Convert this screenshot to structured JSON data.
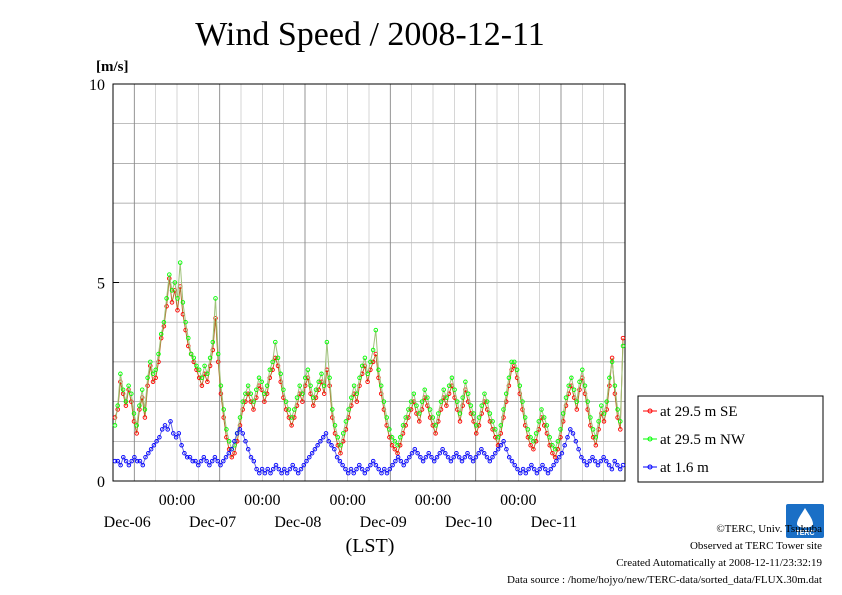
{
  "chart_data": {
    "type": "line",
    "title": "Wind Speed / 2008-12-11",
    "ylabel_unit": "[m/s]",
    "xlabel": "(LST)",
    "ylim": [
      0,
      10
    ],
    "y_ticks": [
      "0",
      "5",
      "10"
    ],
    "x_time_ticks": [
      "00:00",
      "00:00",
      "00:00",
      "00:00",
      "00:00"
    ],
    "x_date_labels": [
      "Dec-06",
      "Dec-07",
      "Dec-08",
      "Dec-09",
      "Dec-10",
      "Dec-11"
    ],
    "x_start_day": "Dec-05 ~18:00",
    "x_hours_span": 144,
    "grid": true,
    "legend_position": "right",
    "series": [
      {
        "name": "at 29.5 m SE",
        "color": "#ff0000",
        "values": [
          1.6,
          1.8,
          2.5,
          2.2,
          1.9,
          2.3,
          2.0,
          1.5,
          1.2,
          1.8,
          2.1,
          1.6,
          2.4,
          2.9,
          2.5,
          2.6,
          3.0,
          3.6,
          3.9,
          4.4,
          5.1,
          4.5,
          4.8,
          4.3,
          4.9,
          4.2,
          3.8,
          3.4,
          3.2,
          3.0,
          2.8,
          2.6,
          2.4,
          2.7,
          2.5,
          2.9,
          3.3,
          4.1,
          3.0,
          2.2,
          1.6,
          1.1,
          0.8,
          0.6,
          0.7,
          1.0,
          1.4,
          1.8,
          2.0,
          2.2,
          2.0,
          1.8,
          2.1,
          2.4,
          2.3,
          2.0,
          2.2,
          2.6,
          2.8,
          3.1,
          2.9,
          2.5,
          2.1,
          1.8,
          1.6,
          1.4,
          1.6,
          1.9,
          2.2,
          2.0,
          2.4,
          2.6,
          2.2,
          1.9,
          2.1,
          2.3,
          2.5,
          2.2,
          2.8,
          2.4,
          1.6,
          1.2,
          0.9,
          0.7,
          1.0,
          1.3,
          1.6,
          1.9,
          2.2,
          2.0,
          2.4,
          2.7,
          2.9,
          2.5,
          2.8,
          3.0,
          3.2,
          2.6,
          2.2,
          1.8,
          1.4,
          1.1,
          0.9,
          0.8,
          0.7,
          0.9,
          1.2,
          1.4,
          1.6,
          1.8,
          2.0,
          1.7,
          1.5,
          1.8,
          2.1,
          1.9,
          1.6,
          1.4,
          1.2,
          1.5,
          1.8,
          2.1,
          1.9,
          2.2,
          2.4,
          2.1,
          1.8,
          1.5,
          1.9,
          2.3,
          2.0,
          1.7,
          1.5,
          1.2,
          1.4,
          1.7,
          2.0,
          1.8,
          1.5,
          1.3,
          1.1,
          0.9,
          1.2,
          1.6,
          2.0,
          2.4,
          2.8,
          2.9,
          2.6,
          2.2,
          1.8,
          1.4,
          1.1,
          0.9,
          0.8,
          1.0,
          1.3,
          1.6,
          1.4,
          1.2,
          0.9,
          0.7,
          0.6,
          0.8,
          1.1,
          1.5,
          1.9,
          2.2,
          2.4,
          2.1,
          1.8,
          2.3,
          2.6,
          2.2,
          1.8,
          1.4,
          1.1,
          0.9,
          1.3,
          1.7,
          1.5,
          1.8,
          2.4,
          3.1,
          2.2,
          1.6,
          1.3,
          3.6
        ]
      },
      {
        "name": "at 29.5 m NW",
        "color": "#00ff00",
        "values": [
          1.4,
          1.9,
          2.7,
          2.3,
          2.0,
          2.4,
          2.2,
          1.7,
          1.4,
          1.9,
          2.3,
          1.8,
          2.6,
          3.0,
          2.7,
          2.8,
          3.2,
          3.7,
          4.0,
          4.6,
          5.2,
          4.8,
          5.0,
          4.6,
          5.5,
          4.5,
          4.0,
          3.6,
          3.2,
          3.1,
          2.9,
          2.8,
          2.6,
          2.9,
          2.7,
          3.1,
          3.5,
          4.6,
          3.2,
          2.4,
          1.8,
          1.3,
          1.0,
          0.8,
          0.9,
          1.2,
          1.6,
          2.0,
          2.2,
          2.4,
          2.2,
          2.0,
          2.3,
          2.6,
          2.5,
          2.2,
          2.4,
          2.8,
          3.0,
          3.5,
          3.1,
          2.7,
          2.3,
          2.0,
          1.8,
          1.6,
          1.8,
          2.1,
          2.4,
          2.2,
          2.6,
          2.8,
          2.4,
          2.1,
          2.3,
          2.5,
          2.7,
          2.4,
          3.5,
          2.6,
          1.8,
          1.4,
          1.1,
          0.9,
          1.2,
          1.5,
          1.8,
          2.1,
          2.4,
          2.2,
          2.6,
          2.9,
          3.1,
          2.7,
          3.0,
          3.3,
          3.8,
          2.8,
          2.4,
          2.0,
          1.6,
          1.3,
          1.1,
          1.0,
          0.9,
          1.1,
          1.4,
          1.6,
          1.8,
          2.0,
          2.2,
          1.9,
          1.7,
          2.0,
          2.3,
          2.1,
          1.8,
          1.6,
          1.4,
          1.7,
          2.0,
          2.3,
          2.1,
          2.4,
          2.6,
          2.3,
          2.0,
          1.7,
          2.1,
          2.5,
          2.2,
          1.9,
          1.7,
          1.4,
          1.6,
          1.9,
          2.2,
          2.0,
          1.7,
          1.5,
          1.3,
          1.1,
          1.4,
          1.8,
          2.2,
          2.6,
          3.0,
          3.0,
          2.8,
          2.4,
          2.0,
          1.6,
          1.3,
          1.1,
          1.0,
          1.2,
          1.5,
          1.8,
          1.6,
          1.4,
          1.1,
          0.9,
          0.8,
          1.0,
          1.3,
          1.7,
          2.1,
          2.4,
          2.6,
          2.3,
          2.0,
          2.5,
          2.8,
          2.4,
          2.0,
          1.6,
          1.3,
          1.1,
          1.5,
          1.9,
          1.7,
          2.0,
          2.6,
          3.0,
          2.4,
          1.8,
          1.5,
          3.4
        ]
      },
      {
        "name": "at 1.6 m",
        "color": "#0000ff",
        "values": [
          0.5,
          0.5,
          0.4,
          0.6,
          0.5,
          0.4,
          0.5,
          0.6,
          0.5,
          0.5,
          0.4,
          0.6,
          0.7,
          0.8,
          0.9,
          1.0,
          1.1,
          1.3,
          1.4,
          1.3,
          1.5,
          1.2,
          1.1,
          1.2,
          0.9,
          0.7,
          0.6,
          0.6,
          0.5,
          0.5,
          0.4,
          0.5,
          0.6,
          0.5,
          0.4,
          0.5,
          0.6,
          0.5,
          0.4,
          0.5,
          0.6,
          0.7,
          0.8,
          1.0,
          1.2,
          1.3,
          1.2,
          1.0,
          0.8,
          0.6,
          0.5,
          0.3,
          0.2,
          0.3,
          0.2,
          0.3,
          0.2,
          0.3,
          0.4,
          0.3,
          0.2,
          0.3,
          0.2,
          0.3,
          0.4,
          0.3,
          0.2,
          0.3,
          0.4,
          0.5,
          0.6,
          0.7,
          0.8,
          0.9,
          1.0,
          1.1,
          1.2,
          1.0,
          0.9,
          0.8,
          0.6,
          0.5,
          0.4,
          0.3,
          0.2,
          0.3,
          0.2,
          0.3,
          0.4,
          0.3,
          0.2,
          0.3,
          0.4,
          0.5,
          0.4,
          0.3,
          0.2,
          0.3,
          0.2,
          0.3,
          0.4,
          0.5,
          0.6,
          0.5,
          0.4,
          0.5,
          0.6,
          0.7,
          0.8,
          0.7,
          0.6,
          0.5,
          0.6,
          0.7,
          0.6,
          0.5,
          0.6,
          0.7,
          0.8,
          0.7,
          0.6,
          0.5,
          0.6,
          0.7,
          0.6,
          0.5,
          0.6,
          0.7,
          0.6,
          0.5,
          0.6,
          0.7,
          0.8,
          0.7,
          0.6,
          0.5,
          0.6,
          0.7,
          0.8,
          0.9,
          1.0,
          0.8,
          0.6,
          0.5,
          0.4,
          0.3,
          0.2,
          0.3,
          0.2,
          0.3,
          0.4,
          0.3,
          0.2,
          0.3,
          0.4,
          0.3,
          0.2,
          0.3,
          0.4,
          0.5,
          0.6,
          0.7,
          0.9,
          1.1,
          1.3,
          1.2,
          1.0,
          0.8,
          0.6,
          0.5,
          0.4,
          0.5,
          0.6,
          0.5,
          0.4,
          0.5,
          0.6,
          0.5,
          0.4,
          0.3,
          0.5,
          0.4,
          0.3,
          0.4
        ]
      }
    ]
  },
  "credits": {
    "copyright": "©TERC, Univ. Tsukuba",
    "site": "Observed at TERC Tower site",
    "created": "Created Automatically at 2008-12-11/23:32:19",
    "source": "Data source : /home/hojyo/new/TERC-data/sorted_data/FLUX.30m.dat",
    "logo_text": "TERC"
  }
}
